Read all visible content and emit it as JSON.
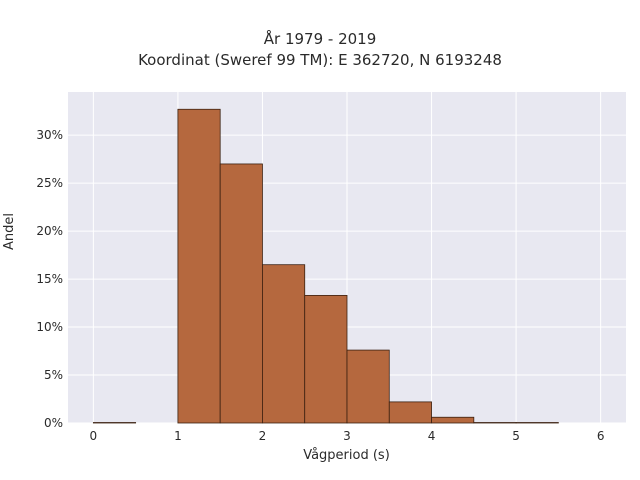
{
  "chart_data": {
    "type": "bar",
    "title_line1": "År 1979 - 2019",
    "title_line2": "Koordinat (Sweref 99 TM): E 362720, N 6193248",
    "xlabel": "Vågperiod (s)",
    "ylabel": "Andel",
    "xlim": [
      -0.3,
      6.3
    ],
    "ylim": [
      0,
      0.345
    ],
    "xticks": [
      0,
      1,
      2,
      3,
      4,
      5,
      6
    ],
    "yticks": [
      0,
      0.05,
      0.1,
      0.15,
      0.2,
      0.25,
      0.3
    ],
    "ytick_labels": [
      "0%",
      "5%",
      "10%",
      "15%",
      "20%",
      "25%",
      "30%"
    ],
    "bins": [
      {
        "x0": 0.0,
        "x1": 0.5,
        "value": 0.0005
      },
      {
        "x0": 0.5,
        "x1": 1.0,
        "value": 0.0
      },
      {
        "x0": 1.0,
        "x1": 1.5,
        "value": 0.327
      },
      {
        "x0": 1.5,
        "x1": 2.0,
        "value": 0.27
      },
      {
        "x0": 2.0,
        "x1": 2.5,
        "value": 0.165
      },
      {
        "x0": 2.5,
        "x1": 3.0,
        "value": 0.133
      },
      {
        "x0": 3.0,
        "x1": 3.5,
        "value": 0.076
      },
      {
        "x0": 3.5,
        "x1": 4.0,
        "value": 0.022
      },
      {
        "x0": 4.0,
        "x1": 4.5,
        "value": 0.006
      },
      {
        "x0": 4.5,
        "x1": 5.0,
        "value": 0.0005
      },
      {
        "x0": 5.0,
        "x1": 5.5,
        "value": 0.0005
      }
    ],
    "bar_color": "#b5683e",
    "bar_edge_color": "#3b2010",
    "plot_bg": "#e8e8f1",
    "grid_color": "#ffffff",
    "grid": true
  }
}
